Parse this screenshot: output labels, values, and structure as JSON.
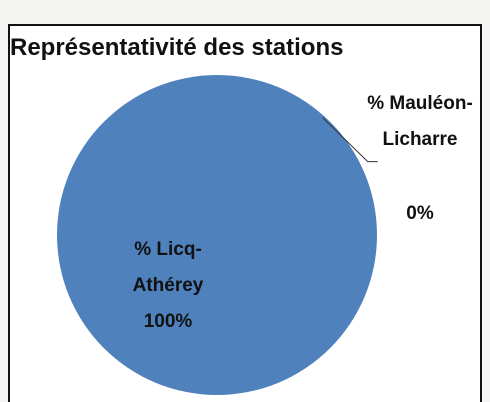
{
  "chart_data": {
    "type": "pie",
    "title": "Représentativité des stations",
    "categories": [
      "% Licq-Athérey",
      "% Mauléon-Licharre"
    ],
    "values": [
      100,
      0
    ],
    "value_labels": [
      "100%",
      "0%"
    ],
    "colors": [
      "#4f81bd",
      "#c0504d"
    ]
  }
}
